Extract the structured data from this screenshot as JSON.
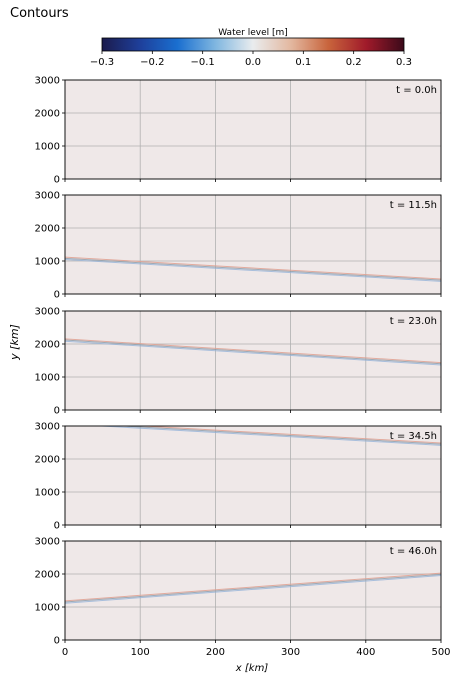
{
  "window": {
    "title": "Contours"
  },
  "colorbar": {
    "label": "Water level [m]",
    "ticks": [
      "−0.3",
      "−0.2",
      "−0.1",
      "0.0",
      "0.1",
      "0.2",
      "0.3"
    ],
    "range": [
      -0.3,
      0.3
    ],
    "colors": [
      "#1b1b4d",
      "#1e3f9a",
      "#1a6fd0",
      "#7fb6e0",
      "#e9ecee",
      "#e3b8a0",
      "#c8643c",
      "#a01a2a",
      "#3b0a1a"
    ]
  },
  "axes": {
    "ylabel": "y [km]",
    "xlabel": "x [km]",
    "xticks": [
      "0",
      "100",
      "200",
      "300",
      "400",
      "500"
    ],
    "yticks": [
      "0",
      "1000",
      "2000",
      "3000"
    ],
    "xlim": [
      0,
      500
    ],
    "ylim": [
      0,
      3000
    ],
    "background": "#efe8e8",
    "grid": true
  },
  "chart_data": [
    {
      "type": "heatmap",
      "time_label": "t = 0.0h",
      "front": null
    },
    {
      "type": "heatmap",
      "time_label": "t = 11.5h",
      "front": {
        "x": [
          0,
          500
        ],
        "y": [
          1080,
          420
        ]
      }
    },
    {
      "type": "heatmap",
      "time_label": "t = 23.0h",
      "front": {
        "x": [
          0,
          500
        ],
        "y": [
          2120,
          1400
        ]
      }
    },
    {
      "type": "heatmap",
      "time_label": "t = 34.5h",
      "front": {
        "x": [
          0,
          500
        ],
        "y": [
          3100,
          2450
        ]
      }
    },
    {
      "type": "heatmap",
      "time_label": "t = 46.0h",
      "front": {
        "x": [
          0,
          500
        ],
        "y": [
          1150,
          1990
        ]
      }
    }
  ]
}
